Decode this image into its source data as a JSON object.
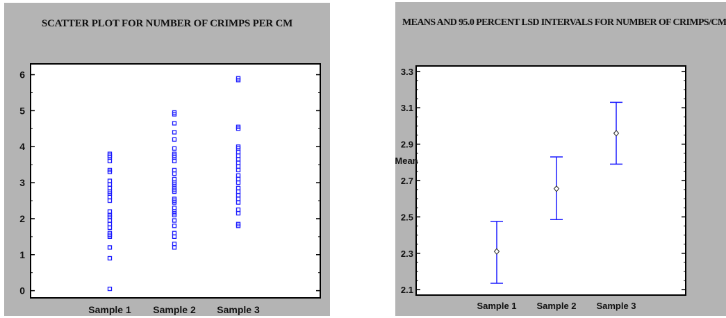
{
  "chart_data": [
    {
      "type": "scatter",
      "title": "SCATTER PLOT FOR NUMBER OF CRIMPS PER CM",
      "xlabel": "",
      "ylabel": "",
      "categories": [
        "Sample 1",
        "Sample 2",
        "Sample 3"
      ],
      "ylim": [
        -0.2,
        6.3
      ],
      "yticks": [
        0,
        1,
        2,
        3,
        4,
        5,
        6
      ],
      "marker_color": "#1a1aff",
      "marker": "open-square",
      "series": [
        {
          "category": "Sample 1",
          "values": [
            0.05,
            0.9,
            1.2,
            1.5,
            1.55,
            1.6,
            1.75,
            1.85,
            1.95,
            2.05,
            2.1,
            2.2,
            2.5,
            2.6,
            2.7,
            2.75,
            2.85,
            2.95,
            3.05,
            3.3,
            3.35,
            3.6,
            3.7,
            3.75,
            3.8
          ]
        },
        {
          "category": "Sample 2",
          "values": [
            1.2,
            1.3,
            1.5,
            1.6,
            1.8,
            1.95,
            2.1,
            2.15,
            2.2,
            2.3,
            2.45,
            2.5,
            2.55,
            2.75,
            2.8,
            2.85,
            2.95,
            3.0,
            3.1,
            3.25,
            3.35,
            3.6,
            3.7,
            3.75,
            3.8,
            3.95,
            4.2,
            4.4,
            4.65,
            4.9,
            4.95
          ]
        },
        {
          "category": "Sample 3",
          "values": [
            1.8,
            1.85,
            2.15,
            2.25,
            2.45,
            2.55,
            2.65,
            2.75,
            2.85,
            3.0,
            3.1,
            3.2,
            3.35,
            3.45,
            3.55,
            3.65,
            3.75,
            3.85,
            3.95,
            4.0,
            4.5,
            4.55,
            5.85,
            5.9
          ]
        }
      ]
    },
    {
      "type": "errorbar",
      "title": "MEANS AND 95.0 PERCENT LSD INTERVALS FOR NUMBER OF CRIMPS/CM",
      "xlabel": "",
      "ylabel": "Mean",
      "categories": [
        "Sample 1",
        "Sample 2",
        "Sample 3"
      ],
      "ylim": [
        2.07,
        3.33
      ],
      "yticks": [
        2.1,
        2.3,
        2.5,
        2.7,
        2.9,
        3.1,
        3.3
      ],
      "ytick_labels": [
        "2.1",
        "2.3",
        "2.5",
        "2.7",
        "2.9",
        "3.1",
        "3.3"
      ],
      "bar_color": "#1a1aff",
      "means": [
        2.31,
        2.655,
        2.96
      ],
      "lower": [
        2.135,
        2.485,
        2.79
      ],
      "upper": [
        2.475,
        2.83,
        3.13
      ]
    }
  ]
}
